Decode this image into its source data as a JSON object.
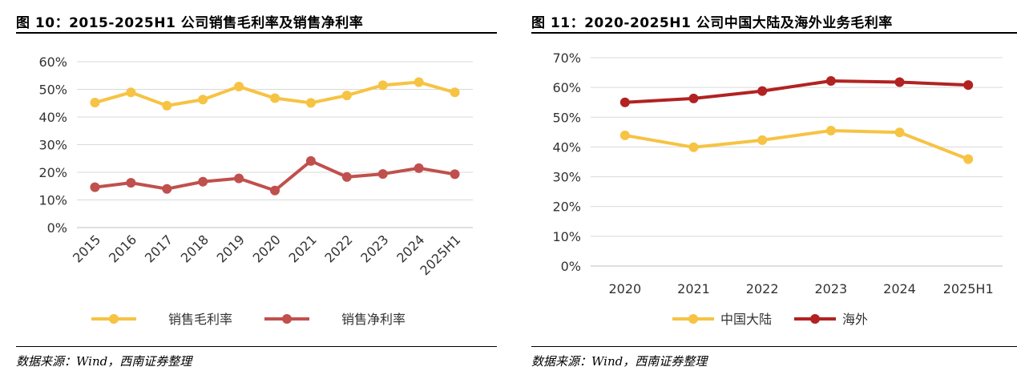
{
  "chart_data": [
    {
      "type": "line",
      "title": "图 10：2015-2025H1 公司销售毛利率及销售净利率",
      "categories": [
        "2015",
        "2016",
        "2017",
        "2018",
        "2019",
        "2020",
        "2021",
        "2022",
        "2023",
        "2024",
        "2025H1"
      ],
      "ylim": [
        0,
        60
      ],
      "yticks": [
        "0%",
        "10%",
        "20%",
        "30%",
        "40%",
        "50%",
        "60%"
      ],
      "grid": true,
      "legend_position": "bottom",
      "series": [
        {
          "name": "销售毛利率",
          "color": "#F6C343",
          "values": [
            45.2,
            48.9,
            44.1,
            46.3,
            51.0,
            46.8,
            45.1,
            47.8,
            51.5,
            52.6,
            48.9
          ]
        },
        {
          "name": "销售净利率",
          "color": "#C0504D",
          "values": [
            14.6,
            16.2,
            14.0,
            16.6,
            17.8,
            13.4,
            24.1,
            18.3,
            19.4,
            21.5,
            19.3
          ]
        }
      ],
      "source": "数据来源：Wind，西南证券整理"
    },
    {
      "type": "line",
      "title": "图 11：2020-2025H1 公司中国大陆及海外业务毛利率",
      "categories": [
        "2020",
        "2021",
        "2022",
        "2023",
        "2024",
        "2025H1"
      ],
      "ylim": [
        0,
        70
      ],
      "yticks": [
        "0%",
        "10%",
        "20%",
        "30%",
        "40%",
        "50%",
        "60%",
        "70%"
      ],
      "grid": true,
      "legend_position": "bottom",
      "series": [
        {
          "name": "中国大陆",
          "color": "#F6C343",
          "values": [
            43.9,
            39.9,
            42.3,
            45.5,
            44.9,
            35.9
          ]
        },
        {
          "name": "海外",
          "color": "#B22222",
          "values": [
            55.0,
            56.3,
            58.8,
            62.2,
            61.8,
            60.8
          ]
        }
      ],
      "source": "数据来源：Wind，西南证券整理"
    }
  ]
}
